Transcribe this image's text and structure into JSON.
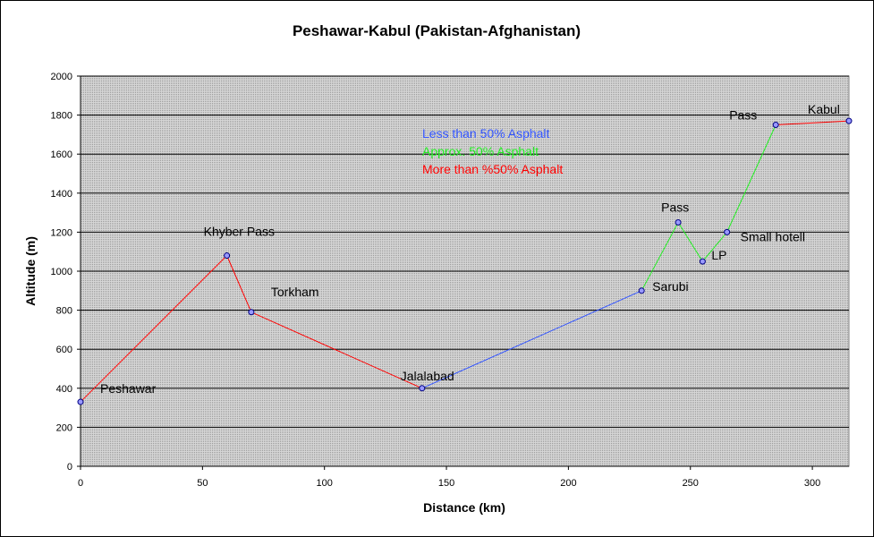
{
  "chart_data": {
    "type": "line",
    "title": "Peshawar-Kabul (Pakistan-Afghanistan)",
    "xlabel": "Distance (km)",
    "ylabel": "Altitude (m)",
    "xlim": [
      0,
      315
    ],
    "ylim": [
      0,
      2000
    ],
    "x_ticks": [
      0,
      50,
      100,
      150,
      200,
      250,
      300
    ],
    "y_ticks": [
      0,
      200,
      400,
      600,
      800,
      1000,
      1200,
      1400,
      1600,
      1800,
      2000
    ],
    "grid": true,
    "legend_position": "top-center",
    "points": [
      {
        "label": "Peshawar",
        "x": 0,
        "y": 330
      },
      {
        "label": "Khyber Pass",
        "x": 60,
        "y": 1080
      },
      {
        "label": "Torkham",
        "x": 70,
        "y": 790
      },
      {
        "label": "Jalalabad",
        "x": 140,
        "y": 400
      },
      {
        "label": "Sarubi",
        "x": 230,
        "y": 900
      },
      {
        "label": "Pass",
        "x": 245,
        "y": 1250
      },
      {
        "label": "LP",
        "x": 255,
        "y": 1050
      },
      {
        "label": "Small hotell",
        "x": 265,
        "y": 1200
      },
      {
        "label": "Pass",
        "x": 285,
        "y": 1750
      },
      {
        "label": "Kabul",
        "x": 315,
        "y": 1770
      }
    ],
    "series": [
      {
        "name": "Less than 50% Asphalt",
        "color": "#3355ff",
        "x": [
          140,
          230
        ],
        "y": [
          400,
          900
        ]
      },
      {
        "name": "Approx. 50% Asphalt",
        "color": "#22ee22",
        "x": [
          230,
          245,
          255,
          265,
          285
        ],
        "y": [
          900,
          1250,
          1050,
          1200,
          1750
        ]
      },
      {
        "name": "More than %50% Asphalt",
        "color": "#ff0000",
        "x": [
          0,
          60,
          70,
          140
        ],
        "y": [
          330,
          1080,
          790,
          400
        ]
      },
      {
        "name": "More than %50% Asphalt",
        "color": "#ff0000",
        "x": [
          285,
          315
        ],
        "y": [
          1750,
          1770
        ]
      }
    ],
    "legend": [
      {
        "text": "Less than 50% Asphalt",
        "color": "#3355ff"
      },
      {
        "text": "Approx. 50% Asphalt",
        "color": "#22ee22"
      },
      {
        "text": "More than %50% Asphalt",
        "color": "#ff0000"
      }
    ]
  },
  "colors": {
    "plot_background": "#c0c0c0",
    "gridline": "#000000",
    "marker_fill": "#9999ff",
    "marker_stroke": "#000080"
  }
}
